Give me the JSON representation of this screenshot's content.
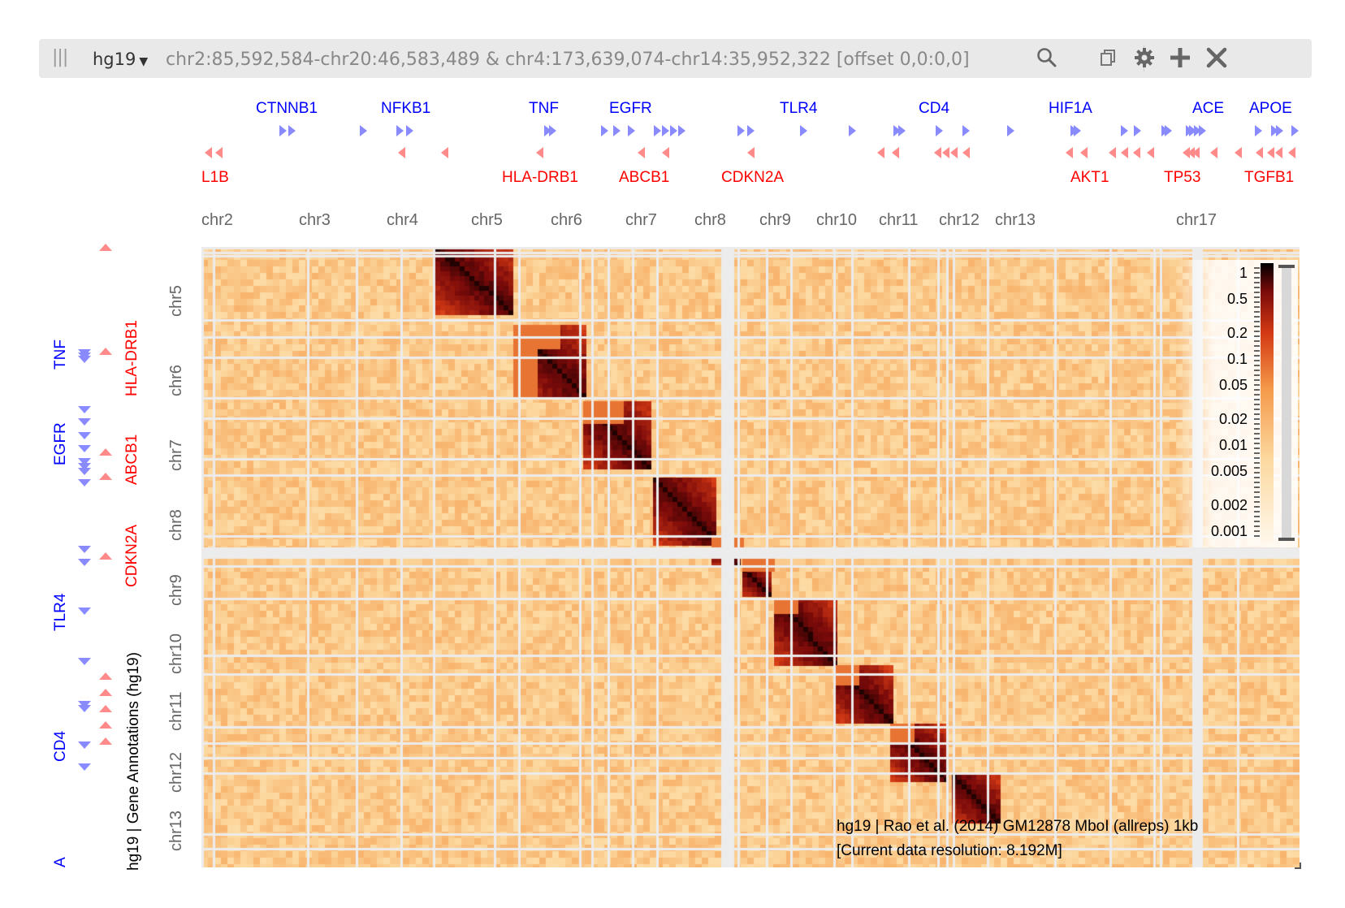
{
  "header": {
    "grip_icon": "grip-icon",
    "assembly": "hg19",
    "locus": "chr2:85,592,584-chr20:46,583,489 & chr4:173,639,074-chr14:35,952,322 [offset 0,0:0,0]",
    "icons": [
      "search-icon",
      "copy-icon",
      "gear-icon",
      "plus-icon",
      "close-icon"
    ]
  },
  "top_genes": {
    "plus_strand": [
      "CTNNB1",
      "NFKB1",
      "TNF",
      "EGFR",
      "TLR4",
      "CD4",
      "HIF1A",
      "ACE",
      "APOE"
    ],
    "minus_strand": [
      "L1B",
      "HLA-DRB1",
      "ABCB1",
      "CDKN2A",
      "AKT1",
      "TP53",
      "TGFB1"
    ]
  },
  "top_chromosomes": [
    "chr2",
    "chr3",
    "chr4",
    "chr5",
    "chr6",
    "chr7",
    "chr8",
    "chr9",
    "chr10",
    "chr11",
    "chr12",
    "chr13",
    "chr17"
  ],
  "left_genes": {
    "plus_strand": [
      "TNF",
      "EGFR",
      "TLR4",
      "CD4",
      "A"
    ],
    "minus_strand": [
      "HLA-DRB1",
      "ABCB1",
      "CDKN2A"
    ]
  },
  "left_track_title": "hg19 | Gene Annotations (hg19)",
  "left_chromosomes": [
    "chr5",
    "chr6",
    "chr7",
    "chr8",
    "chr9",
    "chr10",
    "chr11",
    "chr12",
    "chr13"
  ],
  "colors": {
    "plus_strand": "#0000ff",
    "minus_strand": "#ff0000",
    "header_bg": "#e9e9e9"
  },
  "colorbar": {
    "ticks": [
      "1",
      "0.5",
      "0.2",
      "0.1",
      "0.05",
      "0.02",
      "0.01",
      "0.005",
      "0.002",
      "0.001"
    ],
    "scale": "log"
  },
  "heatmap_info": {
    "line1": "hg19 | Rao et al. (2014) GM12878 MboI (allreps) 1kb",
    "line2": "[Current data resolution: 8.192M]"
  }
}
